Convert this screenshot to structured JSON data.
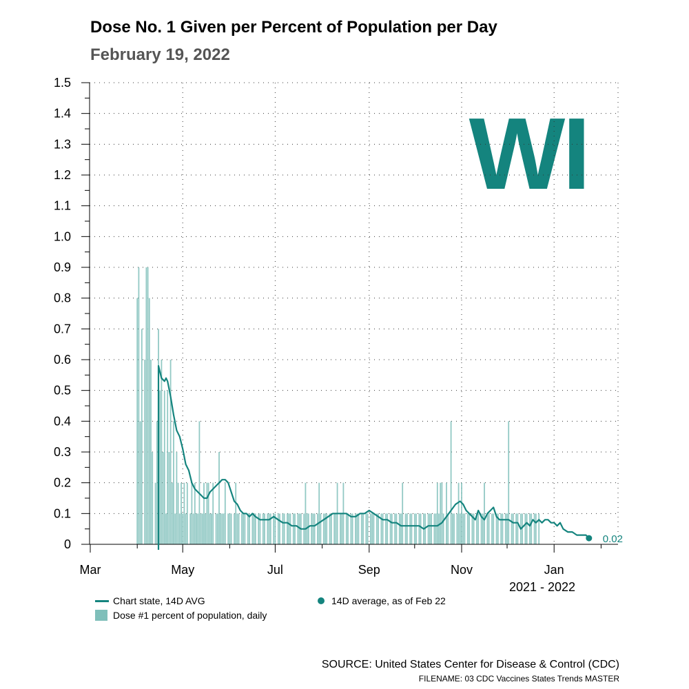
{
  "chart_data": {
    "type": "bar",
    "title": "Dose No. 1 Given per Percent of Population per Day",
    "subtitle": "February 19, 2022",
    "state_label": "WI",
    "xlabel": "2021 - 2022",
    "ylabel": "",
    "ylim": [
      0,
      1.5
    ],
    "y_ticks": [
      "0",
      "0.1",
      "0.2",
      "0.3",
      "0.4",
      "0.5",
      "0.6",
      "0.7",
      "0.8",
      "0.9",
      "1.0",
      "1.1",
      "1.2",
      "1.3",
      "1.4",
      "1.5"
    ],
    "x_tick_labels": [
      "Mar",
      "May",
      "Jul",
      "Sep",
      "Nov",
      "Jan"
    ],
    "grid": true,
    "series": [
      {
        "name": "Dose #1 percent of population, daily",
        "type": "bar",
        "color": "#7fbfba",
        "start_day": 1,
        "values": [
          0.8,
          0.9,
          0.4,
          0.7,
          0,
          0.6,
          0.9,
          0.9,
          0.8,
          0.6,
          0.3,
          0,
          0.2,
          0.4,
          0.7,
          0.5,
          0.6,
          0.3,
          0.5,
          0.1,
          0.5,
          0.3,
          0.6,
          0.2,
          0.4,
          0.1,
          0.3,
          0.2,
          0.1,
          0.2,
          0.1,
          0.2,
          0.1,
          0.2,
          0,
          0.1,
          0.2,
          0.1,
          0.2,
          0.1,
          0.1,
          0.4,
          0.1,
          0.1,
          0.2,
          0.1,
          0.2,
          0.2,
          0.1,
          0.1,
          0.2,
          0,
          0.1,
          0.1,
          0.3,
          0.1,
          0.1,
          0.1,
          0.2,
          0,
          0.1,
          0.1,
          0.1,
          0,
          0.1,
          0.2,
          0.1,
          0.1,
          0,
          0.1,
          0.1,
          0.1,
          0,
          0.1,
          0.1,
          0,
          0.1,
          0.1,
          0.1,
          0,
          0.1,
          0.1,
          0,
          0.1,
          0.1,
          0,
          0.1,
          0.1,
          0.1,
          0,
          0.1,
          0.1,
          0,
          0.1,
          0.1,
          0,
          0.1,
          0.1,
          0,
          0.1,
          0.1,
          0.1,
          0,
          0.1,
          0.1,
          0,
          0.1,
          0.1,
          0.1,
          0,
          0.1,
          0.2,
          0.1,
          0.1,
          0,
          0.1,
          0.1,
          0.1,
          0,
          0.1,
          0.2,
          0.1,
          0,
          0.1,
          0.1,
          0.1,
          0,
          0.1,
          0.1,
          0,
          0.1,
          0.1,
          0.2,
          0,
          0.1,
          0.1,
          0.2,
          0,
          0.1,
          0.1,
          0,
          0.1,
          0.1,
          0,
          0.1,
          0.1,
          0.1,
          0,
          0.1,
          0.1,
          0,
          0.1,
          0.1,
          0,
          0.1,
          0.1,
          0.1,
          0,
          0.1,
          0.1,
          0,
          0.1,
          0.1,
          0,
          0.1,
          0.1,
          0,
          0.1,
          0.1,
          0,
          0.1,
          0.1,
          0,
          0.1,
          0.1,
          0.2,
          0,
          0.1,
          0.1,
          0,
          0.1,
          0.1,
          0,
          0.1,
          0.1,
          0,
          0.1,
          0.1,
          0,
          0.1,
          0.1,
          0,
          0.1,
          0.1,
          0.1,
          0,
          0.1,
          0.1,
          0.2,
          0.1,
          0.2,
          0.2,
          0.1,
          0,
          0.2,
          0.1,
          0,
          0.4,
          0.1,
          0.1,
          0,
          0.1,
          0.2,
          0.1,
          0.2,
          0.1,
          0.1,
          0,
          0.1,
          0.1,
          0,
          0.1,
          0.1,
          0,
          0.1,
          0.1,
          0,
          0.1,
          0.1,
          0.2,
          0,
          0.1,
          0.1,
          0,
          0.1,
          0.1,
          0,
          0.1,
          0.1,
          0,
          0.1,
          0.1,
          0,
          0.1,
          0.1,
          0.4,
          0,
          0.1,
          0.1,
          0,
          0.1,
          0.1,
          0,
          0.1,
          0.1,
          0,
          0.1,
          0.1,
          0,
          0.1,
          0.1,
          0,
          0.1,
          0.1,
          0,
          0.1
        ]
      },
      {
        "name": "Chart state, 14D AVG",
        "type": "line",
        "color": "#14847e",
        "points": [
          [
            15,
            0.58
          ],
          [
            17,
            0.54
          ],
          [
            19,
            0.53
          ],
          [
            20,
            0.54
          ],
          [
            21,
            0.53
          ],
          [
            23,
            0.48
          ],
          [
            25,
            0.42
          ],
          [
            27,
            0.37
          ],
          [
            29,
            0.35
          ],
          [
            31,
            0.31
          ],
          [
            33,
            0.26
          ],
          [
            35,
            0.24
          ],
          [
            37,
            0.2
          ],
          [
            39,
            0.18
          ],
          [
            41,
            0.17
          ],
          [
            43,
            0.16
          ],
          [
            45,
            0.15
          ],
          [
            47,
            0.15
          ],
          [
            49,
            0.17
          ],
          [
            51,
            0.18
          ],
          [
            53,
            0.19
          ],
          [
            55,
            0.2
          ],
          [
            57,
            0.21
          ],
          [
            59,
            0.21
          ],
          [
            61,
            0.2
          ],
          [
            63,
            0.17
          ],
          [
            65,
            0.14
          ],
          [
            67,
            0.13
          ],
          [
            69,
            0.11
          ],
          [
            71,
            0.1
          ],
          [
            73,
            0.1
          ],
          [
            75,
            0.09
          ],
          [
            77,
            0.1
          ],
          [
            79,
            0.09
          ],
          [
            82,
            0.08
          ],
          [
            85,
            0.08
          ],
          [
            88,
            0.08
          ],
          [
            91,
            0.09
          ],
          [
            94,
            0.08
          ],
          [
            97,
            0.07
          ],
          [
            100,
            0.07
          ],
          [
            103,
            0.06
          ],
          [
            106,
            0.06
          ],
          [
            109,
            0.05
          ],
          [
            112,
            0.05
          ],
          [
            115,
            0.06
          ],
          [
            118,
            0.06
          ],
          [
            121,
            0.07
          ],
          [
            124,
            0.08
          ],
          [
            127,
            0.09
          ],
          [
            130,
            0.1
          ],
          [
            133,
            0.1
          ],
          [
            136,
            0.1
          ],
          [
            139,
            0.1
          ],
          [
            142,
            0.09
          ],
          [
            145,
            0.09
          ],
          [
            148,
            0.1
          ],
          [
            151,
            0.1
          ],
          [
            154,
            0.11
          ],
          [
            157,
            0.1
          ],
          [
            160,
            0.09
          ],
          [
            163,
            0.08
          ],
          [
            166,
            0.08
          ],
          [
            169,
            0.07
          ],
          [
            172,
            0.07
          ],
          [
            175,
            0.06
          ],
          [
            178,
            0.06
          ],
          [
            181,
            0.06
          ],
          [
            184,
            0.06
          ],
          [
            187,
            0.06
          ],
          [
            190,
            0.05
          ],
          [
            193,
            0.06
          ],
          [
            196,
            0.06
          ],
          [
            199,
            0.06
          ],
          [
            202,
            0.07
          ],
          [
            205,
            0.09
          ],
          [
            208,
            0.11
          ],
          [
            211,
            0.13
          ],
          [
            214,
            0.14
          ],
          [
            216,
            0.13
          ],
          [
            218,
            0.11
          ],
          [
            220,
            0.1
          ],
          [
            222,
            0.09
          ],
          [
            224,
            0.08
          ],
          [
            226,
            0.11
          ],
          [
            228,
            0.09
          ],
          [
            230,
            0.08
          ],
          [
            232,
            0.1
          ],
          [
            234,
            0.11
          ],
          [
            236,
            0.12
          ],
          [
            238,
            0.09
          ],
          [
            240,
            0.08
          ],
          [
            243,
            0.08
          ],
          [
            246,
            0.08
          ],
          [
            249,
            0.07
          ],
          [
            252,
            0.07
          ],
          [
            254,
            0.05
          ],
          [
            256,
            0.06
          ],
          [
            258,
            0.07
          ],
          [
            260,
            0.06
          ],
          [
            262,
            0.08
          ],
          [
            264,
            0.07
          ],
          [
            266,
            0.08
          ],
          [
            268,
            0.07
          ],
          [
            270,
            0.08
          ],
          [
            272,
            0.08
          ],
          [
            274,
            0.07
          ],
          [
            276,
            0.07
          ],
          [
            278,
            0.06
          ],
          [
            280,
            0.07
          ],
          [
            282,
            0.05
          ],
          [
            285,
            0.04
          ],
          [
            288,
            0.04
          ],
          [
            291,
            0.03
          ],
          [
            294,
            0.03
          ],
          [
            297,
            0.03
          ],
          [
            299,
            0.02
          ]
        ]
      }
    ],
    "endpoint": {
      "day": 299,
      "value": 0.02,
      "label": "0.02"
    },
    "legend_position": "bottom"
  },
  "legend": {
    "line_label": "Chart state, 14D AVG",
    "bar_label": "Dose #1 percent of population, daily",
    "dot_label": "14D average, as of Feb 22"
  },
  "footer": {
    "source": "SOURCE: United States Center for Disease & Control (CDC)",
    "filename": "FILENAME: 03 CDC Vaccines States Trends MASTER"
  }
}
